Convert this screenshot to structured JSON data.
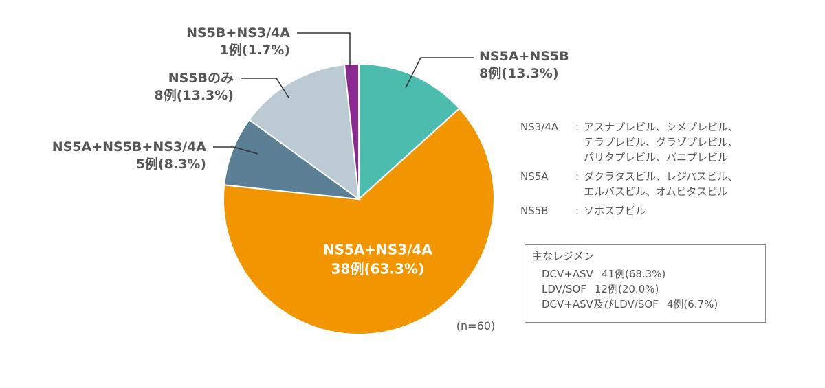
{
  "chart_data": {
    "type": "pie",
    "total_label": "(n=60)",
    "slices": [
      {
        "label": "NS5A+NS5B",
        "count_text": "8例(13.3%)",
        "percent": 13.3,
        "color": "#4bbcae",
        "label_style": "callout"
      },
      {
        "label": "NS5A+NS3/4A",
        "count_text": "38例(63.3%)",
        "percent": 63.3,
        "color": "#f19500",
        "label_style": "inside"
      },
      {
        "label": "NS5A+NS5B+NS3/4A",
        "count_text": "5例(8.3%)",
        "percent": 8.3,
        "color": "#5b7f95",
        "label_style": "callout"
      },
      {
        "label": "NS5Bのみ",
        "count_text": "8例(13.3%)",
        "percent": 13.3,
        "color": "#bccad4",
        "label_style": "callout"
      },
      {
        "label": "NS5B+NS3/4A",
        "count_text": "1例(1.7%)",
        "percent": 1.7,
        "color": "#8a2a91",
        "label_style": "callout"
      }
    ]
  },
  "legend": {
    "groups": [
      {
        "key": "NS3/4A",
        "colon": ":",
        "lines": [
          "アスナプレビル、シメプレビル、",
          "テラプレビル、グラゾプレビル、",
          "パリタプレビル、バニプレビル"
        ]
      },
      {
        "key": "NS5A",
        "colon": ":",
        "lines": [
          "ダクラタスビル、レジパスビル、",
          "エルバスビル、オムビタスビル"
        ]
      },
      {
        "key": "NS5B",
        "colon": ":",
        "lines": [
          "ソホスブビル"
        ]
      }
    ]
  },
  "regimens": {
    "title": "主なレジメン",
    "rows": [
      {
        "name": "DCV+ASV",
        "value": "41例(68.3%)"
      },
      {
        "name": "LDV/SOF",
        "value": "12例(20.0%)"
      },
      {
        "name": "DCV+ASV及びLDV/SOF",
        "value": "4例(6.7%)"
      }
    ]
  }
}
